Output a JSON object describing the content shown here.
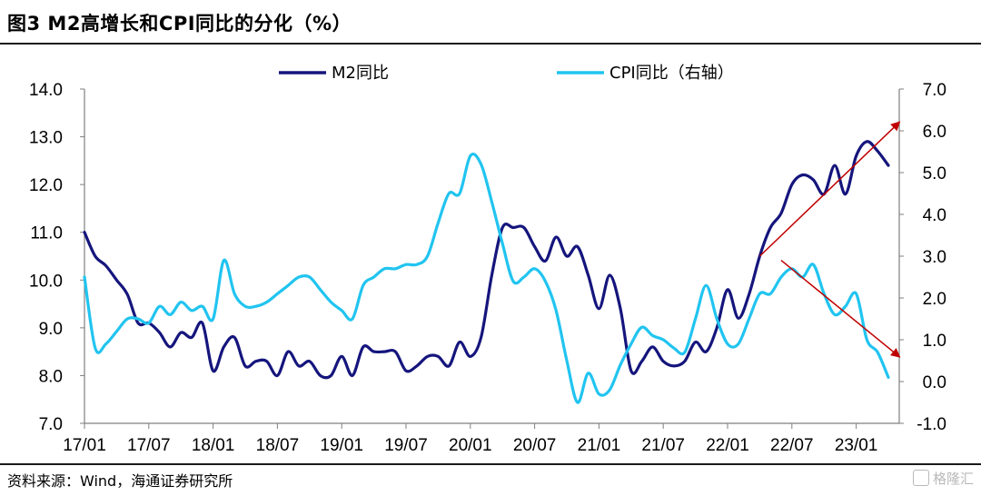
{
  "header": {
    "figure_title": "图3  M2高增长和CPI同比的分化（%）"
  },
  "footer": {
    "source": "资料来源：Wind，海通证券研究所",
    "watermark": "格隆汇"
  },
  "chart_data": {
    "type": "line",
    "x_ticks": [
      "17/01",
      "17/07",
      "18/01",
      "18/07",
      "19/01",
      "19/07",
      "20/01",
      "20/07",
      "21/01",
      "21/07",
      "22/01",
      "22/07",
      "23/01"
    ],
    "left_axis": {
      "ticks": [
        "14.0",
        "13.0",
        "12.0",
        "11.0",
        "10.0",
        "9.0",
        "8.0",
        "7.0"
      ],
      "ylim": [
        7.0,
        14.0
      ]
    },
    "right_axis": {
      "ticks": [
        "7.0",
        "6.0",
        "5.0",
        "4.0",
        "3.0",
        "2.0",
        "1.0",
        "0.0",
        "-1.0"
      ],
      "ylim": [
        -1.0,
        7.0
      ]
    },
    "x_range": [
      "2017-01",
      "2023-05"
    ],
    "legend_position": "top-center",
    "series": [
      {
        "name": "M2同比",
        "axis": "left",
        "color": "#15157d",
        "points": [
          [
            "2017-01",
            11.0
          ],
          [
            "2017-02",
            10.5
          ],
          [
            "2017-03",
            10.3
          ],
          [
            "2017-04",
            10.0
          ],
          [
            "2017-05",
            9.7
          ],
          [
            "2017-06",
            9.1
          ],
          [
            "2017-07",
            9.1
          ],
          [
            "2017-08",
            8.9
          ],
          [
            "2017-09",
            8.6
          ],
          [
            "2017-10",
            8.9
          ],
          [
            "2017-11",
            8.8
          ],
          [
            "2017-12",
            9.1
          ],
          [
            "2018-01",
            8.1
          ],
          [
            "2018-02",
            8.6
          ],
          [
            "2018-03",
            8.8
          ],
          [
            "2018-04",
            8.2
          ],
          [
            "2018-05",
            8.3
          ],
          [
            "2018-06",
            8.3
          ],
          [
            "2018-07",
            8.0
          ],
          [
            "2018-08",
            8.5
          ],
          [
            "2018-09",
            8.2
          ],
          [
            "2018-10",
            8.3
          ],
          [
            "2018-11",
            8.0
          ],
          [
            "2018-12",
            8.0
          ],
          [
            "2019-01",
            8.4
          ],
          [
            "2019-02",
            8.0
          ],
          [
            "2019-03",
            8.6
          ],
          [
            "2019-04",
            8.5
          ],
          [
            "2019-05",
            8.5
          ],
          [
            "2019-06",
            8.5
          ],
          [
            "2019-07",
            8.1
          ],
          [
            "2019-08",
            8.2
          ],
          [
            "2019-09",
            8.4
          ],
          [
            "2019-10",
            8.4
          ],
          [
            "2019-11",
            8.2
          ],
          [
            "2019-12",
            8.7
          ],
          [
            "2020-01",
            8.4
          ],
          [
            "2020-02",
            8.8
          ],
          [
            "2020-03",
            10.1
          ],
          [
            "2020-04",
            11.1
          ],
          [
            "2020-05",
            11.1
          ],
          [
            "2020-06",
            11.1
          ],
          [
            "2020-07",
            10.7
          ],
          [
            "2020-08",
            10.4
          ],
          [
            "2020-09",
            10.9
          ],
          [
            "2020-10",
            10.5
          ],
          [
            "2020-11",
            10.7
          ],
          [
            "2020-12",
            10.1
          ],
          [
            "2021-01",
            9.4
          ],
          [
            "2021-02",
            10.1
          ],
          [
            "2021-03",
            9.4
          ],
          [
            "2021-04",
            8.1
          ],
          [
            "2021-05",
            8.3
          ],
          [
            "2021-06",
            8.6
          ],
          [
            "2021-07",
            8.3
          ],
          [
            "2021-08",
            8.2
          ],
          [
            "2021-09",
            8.3
          ],
          [
            "2021-10",
            8.7
          ],
          [
            "2021-11",
            8.5
          ],
          [
            "2021-12",
            9.0
          ],
          [
            "2022-01",
            9.8
          ],
          [
            "2022-02",
            9.2
          ],
          [
            "2022-03",
            9.7
          ],
          [
            "2022-04",
            10.5
          ],
          [
            "2022-05",
            11.1
          ],
          [
            "2022-06",
            11.4
          ],
          [
            "2022-07",
            12.0
          ],
          [
            "2022-08",
            12.2
          ],
          [
            "2022-09",
            12.1
          ],
          [
            "2022-10",
            11.8
          ],
          [
            "2022-11",
            12.4
          ],
          [
            "2022-12",
            11.8
          ],
          [
            "2023-01",
            12.6
          ],
          [
            "2023-02",
            12.9
          ],
          [
            "2023-03",
            12.7
          ],
          [
            "2023-04",
            12.4
          ]
        ]
      },
      {
        "name": "CPI同比（右轴）",
        "axis": "right",
        "color": "#21c4f0",
        "points": [
          [
            "2017-01",
            2.5
          ],
          [
            "2017-02",
            0.8
          ],
          [
            "2017-03",
            0.9
          ],
          [
            "2017-04",
            1.2
          ],
          [
            "2017-05",
            1.5
          ],
          [
            "2017-06",
            1.5
          ],
          [
            "2017-07",
            1.4
          ],
          [
            "2017-08",
            1.8
          ],
          [
            "2017-09",
            1.6
          ],
          [
            "2017-10",
            1.9
          ],
          [
            "2017-11",
            1.7
          ],
          [
            "2017-12",
            1.8
          ],
          [
            "2018-01",
            1.5
          ],
          [
            "2018-02",
            2.9
          ],
          [
            "2018-03",
            2.1
          ],
          [
            "2018-04",
            1.8
          ],
          [
            "2018-05",
            1.8
          ],
          [
            "2018-06",
            1.9
          ],
          [
            "2018-07",
            2.1
          ],
          [
            "2018-08",
            2.3
          ],
          [
            "2018-09",
            2.5
          ],
          [
            "2018-10",
            2.5
          ],
          [
            "2018-11",
            2.2
          ],
          [
            "2018-12",
            1.9
          ],
          [
            "2019-01",
            1.7
          ],
          [
            "2019-02",
            1.5
          ],
          [
            "2019-03",
            2.3
          ],
          [
            "2019-04",
            2.5
          ],
          [
            "2019-05",
            2.7
          ],
          [
            "2019-06",
            2.7
          ],
          [
            "2019-07",
            2.8
          ],
          [
            "2019-08",
            2.8
          ],
          [
            "2019-09",
            3.0
          ],
          [
            "2019-10",
            3.8
          ],
          [
            "2019-11",
            4.5
          ],
          [
            "2019-12",
            4.5
          ],
          [
            "2020-01",
            5.4
          ],
          [
            "2020-02",
            5.2
          ],
          [
            "2020-03",
            4.3
          ],
          [
            "2020-04",
            3.3
          ],
          [
            "2020-05",
            2.4
          ],
          [
            "2020-06",
            2.5
          ],
          [
            "2020-07",
            2.7
          ],
          [
            "2020-08",
            2.4
          ],
          [
            "2020-09",
            1.7
          ],
          [
            "2020-10",
            0.5
          ],
          [
            "2020-11",
            -0.5
          ],
          [
            "2020-12",
            0.2
          ],
          [
            "2021-01",
            -0.3
          ],
          [
            "2021-02",
            -0.2
          ],
          [
            "2021-03",
            0.4
          ],
          [
            "2021-04",
            0.9
          ],
          [
            "2021-05",
            1.3
          ],
          [
            "2021-06",
            1.1
          ],
          [
            "2021-07",
            1.0
          ],
          [
            "2021-08",
            0.8
          ],
          [
            "2021-09",
            0.7
          ],
          [
            "2021-10",
            1.5
          ],
          [
            "2021-11",
            2.3
          ],
          [
            "2021-12",
            1.5
          ],
          [
            "2022-01",
            0.9
          ],
          [
            "2022-02",
            0.9
          ],
          [
            "2022-03",
            1.5
          ],
          [
            "2022-04",
            2.1
          ],
          [
            "2022-05",
            2.1
          ],
          [
            "2022-06",
            2.5
          ],
          [
            "2022-07",
            2.7
          ],
          [
            "2022-08",
            2.5
          ],
          [
            "2022-09",
            2.8
          ],
          [
            "2022-10",
            2.1
          ],
          [
            "2022-11",
            1.6
          ],
          [
            "2022-12",
            1.8
          ],
          [
            "2023-01",
            2.1
          ],
          [
            "2023-02",
            1.0
          ],
          [
            "2023-03",
            0.7
          ],
          [
            "2023-04",
            0.1
          ]
        ]
      }
    ],
    "annotations": [
      {
        "type": "arrow",
        "color": "#c00000",
        "axis": "left",
        "from": [
          "2022-04",
          10.5
        ],
        "to": [
          "2023-05",
          13.3
        ]
      },
      {
        "type": "arrow",
        "color": "#c00000",
        "axis": "right",
        "from": [
          "2022-06",
          2.9
        ],
        "to": [
          "2023-05",
          0.6
        ]
      }
    ]
  }
}
